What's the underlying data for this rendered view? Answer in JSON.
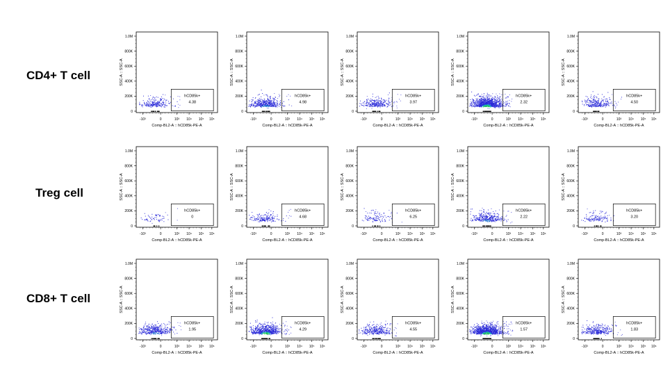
{
  "chart_data": {
    "type": "scatter",
    "x_axis_label": "Comp-BL2-A :: hCD85k-PE-A",
    "y_axis_label": "SSC-A :: SSC-A",
    "x_ticks": [
      "-10³",
      "0",
      "10³",
      "10⁴",
      "10⁵",
      "10⁶"
    ],
    "y_ticks": [
      "0",
      "200K",
      "400K",
      "600K",
      "800K",
      "1.0M"
    ],
    "y_range": [
      0,
      1000000
    ],
    "gate_label": "hCD85k+",
    "rows": [
      {
        "label": "CD4+ T cell",
        "values": [
          "4.38",
          "4.98",
          "3.97",
          "2.32",
          "4.50"
        ]
      },
      {
        "label": "Treg cell",
        "values": [
          "0",
          "4.68",
          "6.25",
          "2.22",
          "3.20"
        ]
      },
      {
        "label": "CD8+ T cell",
        "values": [
          "1.95",
          "4.29",
          "4.55",
          "1.57",
          "1.83"
        ]
      }
    ]
  }
}
